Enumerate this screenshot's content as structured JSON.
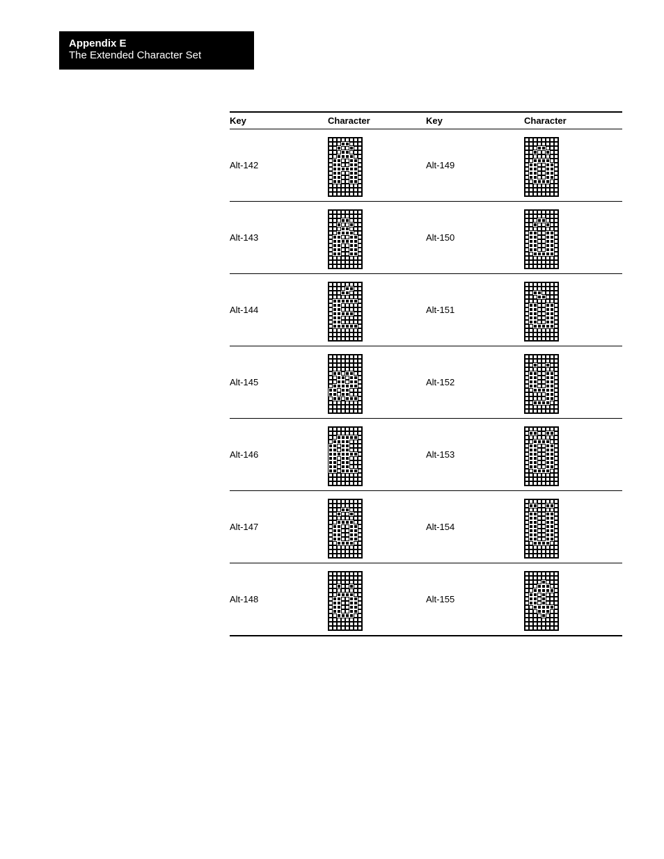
{
  "header": {
    "title": "Appendix E",
    "subtitle": "The Extended Character Set"
  },
  "table": {
    "columns": [
      "Key",
      "Character",
      "Key",
      "Character"
    ],
    "glyph_grid": {
      "cols": 8,
      "rows": 14
    },
    "cell_on_bg": "#000000",
    "cell_on_border": "#ffffff",
    "cell_off_bg": "#ffffff",
    "cell_off_border": "#000000",
    "rows": [
      {
        "left_key": "Alt-142",
        "left_glyph": [
          "00000000",
          "00011000",
          "00100100",
          "00011000",
          "00111100",
          "01100110",
          "01100110",
          "01111110",
          "01100110",
          "01100110",
          "01100110",
          "00000000",
          "00000000",
          "00000000"
        ],
        "right_key": "Alt-149",
        "right_glyph": [
          "00000000",
          "00000000",
          "00011000",
          "00100100",
          "00000000",
          "00111100",
          "01100110",
          "01100110",
          "01100110",
          "01100110",
          "00111100",
          "00000000",
          "00000000",
          "00000000"
        ]
      },
      {
        "left_key": "Alt-143",
        "left_glyph": [
          "00000000",
          "00000000",
          "00011000",
          "00100100",
          "00011000",
          "00111100",
          "01100110",
          "01111110",
          "01100110",
          "01100110",
          "01100110",
          "00000000",
          "00000000",
          "00000000"
        ],
        "right_key": "Alt-150",
        "right_glyph": [
          "00000000",
          "00000000",
          "00011000",
          "00100100",
          "00000000",
          "01100110",
          "01100110",
          "01100110",
          "01100110",
          "01100110",
          "00111110",
          "00000000",
          "00000000",
          "00000000"
        ]
      },
      {
        "left_key": "Alt-144",
        "left_glyph": [
          "00000000",
          "00001100",
          "00011000",
          "00000000",
          "01111110",
          "01100000",
          "01100000",
          "01111100",
          "01100000",
          "01100000",
          "01111110",
          "00000000",
          "00000000",
          "00000000"
        ],
        "right_key": "Alt-151",
        "right_glyph": [
          "00000000",
          "00000000",
          "00110000",
          "00011000",
          "00000000",
          "01100110",
          "01100110",
          "01100110",
          "01100110",
          "01100110",
          "00111110",
          "00000000",
          "00000000",
          "00000000"
        ]
      },
      {
        "left_key": "Alt-145",
        "left_glyph": [
          "00000000",
          "00000000",
          "00000000",
          "00000000",
          "01101100",
          "00110110",
          "00110110",
          "01111110",
          "11011000",
          "11011000",
          "01101110",
          "00000000",
          "00000000",
          "00000000"
        ],
        "right_key": "Alt-152",
        "right_glyph": [
          "00000000",
          "00000000",
          "00100100",
          "00000000",
          "01100110",
          "01100110",
          "01100110",
          "01100110",
          "00111110",
          "00000110",
          "00000110",
          "00111100",
          "00000000",
          "00000000"
        ]
      },
      {
        "left_key": "Alt-146",
        "left_glyph": [
          "00000000",
          "00000000",
          "00111110",
          "01111000",
          "11011000",
          "11011000",
          "11111110",
          "11011000",
          "11011000",
          "11011000",
          "11011110",
          "00000000",
          "00000000",
          "00000000"
        ],
        "right_key": "Alt-153",
        "right_glyph": [
          "00000000",
          "01100110",
          "00000000",
          "00111100",
          "01100110",
          "01100110",
          "01100110",
          "01100110",
          "01100110",
          "01100110",
          "00111100",
          "00000000",
          "00000000",
          "00000000"
        ]
      },
      {
        "left_key": "Alt-147",
        "left_glyph": [
          "00000000",
          "00000000",
          "00011000",
          "00100100",
          "00000000",
          "00111100",
          "01100110",
          "01100110",
          "01100110",
          "01100110",
          "00111100",
          "00000000",
          "00000000",
          "00000000"
        ],
        "right_key": "Alt-154",
        "right_glyph": [
          "00000000",
          "01100110",
          "00000000",
          "01100110",
          "01100110",
          "01100110",
          "01100110",
          "01100110",
          "01100110",
          "01100110",
          "00111100",
          "00000000",
          "00000000",
          "00000000"
        ]
      },
      {
        "left_key": "Alt-148",
        "left_glyph": [
          "00000000",
          "00000000",
          "00000000",
          "00100100",
          "00000000",
          "00111100",
          "01100110",
          "01100110",
          "01100110",
          "01100110",
          "00111100",
          "00000000",
          "00000000",
          "00000000"
        ],
        "right_key": "Alt-155",
        "right_glyph": [
          "00000000",
          "00000000",
          "00001000",
          "00011100",
          "00111110",
          "01101000",
          "01101000",
          "01101000",
          "00111110",
          "00011100",
          "00001000",
          "00000000",
          "00000000",
          "00000000"
        ]
      }
    ]
  }
}
